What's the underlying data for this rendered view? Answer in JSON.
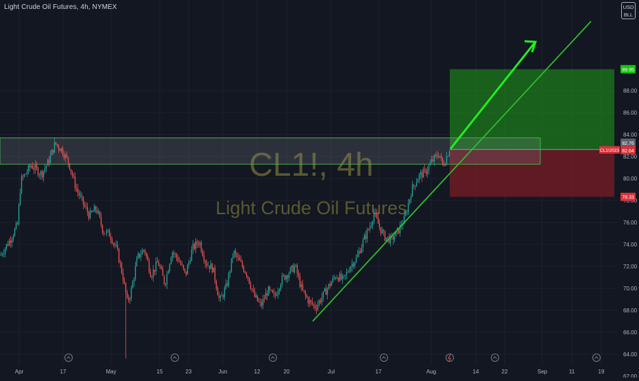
{
  "header": {
    "title": "Light Crude Oil Futures, 4h, NYMEX"
  },
  "currency_box": {
    "line1": "USD",
    "line2": "BLL"
  },
  "watermark": {
    "symbol": "CL1!, 4h",
    "name": "Light Crude Oil Futures"
  },
  "colors": {
    "background": "#131722",
    "candle_up": "#26a69a",
    "candle_down": "#ef5350",
    "trend_line": "#2ebd2e",
    "arrow": "#22ee22",
    "profit_zone": "#1b7a1b",
    "loss_zone": "#7a1c24",
    "resistance_zone": "#4caf50",
    "watermark": "#5a5a30",
    "tag_green": "#16c60c",
    "tag_red": "#d9313a",
    "tag_gray": "#5d606b"
  },
  "chart_data": {
    "type": "candlestick",
    "symbol": "CL1!",
    "timeframe": "4h",
    "exchange": "NYMEX",
    "ylim": [
      62.0,
      92.5
    ],
    "y_ticks": [
      62.0,
      64.0,
      66.0,
      68.0,
      70.0,
      72.0,
      74.0,
      76.0,
      78.0,
      80.0,
      82.0,
      84.0,
      86.0,
      88.0
    ],
    "x_ticks": [
      "Apr",
      "17",
      "May",
      "15",
      "23",
      "Jun",
      "12",
      "20",
      "Jul",
      "17",
      "Aug",
      "14",
      "22",
      "Sep",
      "11",
      "19"
    ],
    "price_path": [
      [
        0,
        73.0
      ],
      [
        15,
        74.5
      ],
      [
        25,
        75.8
      ],
      [
        30,
        79.8
      ],
      [
        45,
        81.2
      ],
      [
        60,
        80.4
      ],
      [
        70,
        81.5
      ],
      [
        80,
        83.2
      ],
      [
        90,
        82.6
      ],
      [
        100,
        81.4
      ],
      [
        110,
        79.2
      ],
      [
        120,
        77.8
      ],
      [
        130,
        76.6
      ],
      [
        140,
        77.3
      ],
      [
        150,
        75.2
      ],
      [
        160,
        74.9
      ],
      [
        170,
        73.5
      ],
      [
        178,
        71.3
      ],
      [
        185,
        68.8
      ],
      [
        190,
        69.5
      ],
      [
        200,
        72.8
      ],
      [
        210,
        73.6
      ],
      [
        220,
        71.2
      ],
      [
        230,
        72.4
      ],
      [
        240,
        70.4
      ],
      [
        250,
        73.4
      ],
      [
        260,
        72.6
      ],
      [
        270,
        71.2
      ],
      [
        280,
        73.6
      ],
      [
        290,
        74.3
      ],
      [
        300,
        72.3
      ],
      [
        310,
        71.8
      ],
      [
        320,
        68.8
      ],
      [
        330,
        70.2
      ],
      [
        340,
        73.3
      ],
      [
        350,
        72.3
      ],
      [
        360,
        71.3
      ],
      [
        370,
        69.3
      ],
      [
        380,
        68.4
      ],
      [
        390,
        69.8
      ],
      [
        400,
        69.2
      ],
      [
        410,
        70.8
      ],
      [
        420,
        71.4
      ],
      [
        430,
        72.0
      ],
      [
        440,
        69.8
      ],
      [
        450,
        68.8
      ],
      [
        460,
        68.3
      ],
      [
        470,
        69.3
      ],
      [
        480,
        70.3
      ],
      [
        490,
        71.2
      ],
      [
        500,
        70.7
      ],
      [
        510,
        72.0
      ],
      [
        520,
        72.8
      ],
      [
        530,
        74.4
      ],
      [
        540,
        75.8
      ],
      [
        545,
        76.9
      ],
      [
        550,
        76.0
      ],
      [
        560,
        74.7
      ],
      [
        570,
        74.4
      ],
      [
        580,
        75.2
      ],
      [
        590,
        76.4
      ],
      [
        600,
        79.0
      ],
      [
        610,
        80.2
      ],
      [
        620,
        80.6
      ],
      [
        630,
        81.6
      ],
      [
        640,
        82.3
      ],
      [
        645,
        81.2
      ],
      [
        650,
        81.8
      ],
      [
        655,
        82.7
      ]
    ],
    "trend_line": {
      "from": [
        "late Jun",
        67.0
      ],
      "to": [
        "mid Sep",
        92.5
      ]
    },
    "resistance_zone": {
      "low": 81.3,
      "high": 83.7
    },
    "long_position": {
      "entry": 82.64,
      "target": 89.95,
      "stop": 78.33
    },
    "price_labels": {
      "target": "89.95",
      "current": "82.76",
      "entry": "82.64",
      "contract": "CL1!2023",
      "stop": "78.33"
    }
  }
}
